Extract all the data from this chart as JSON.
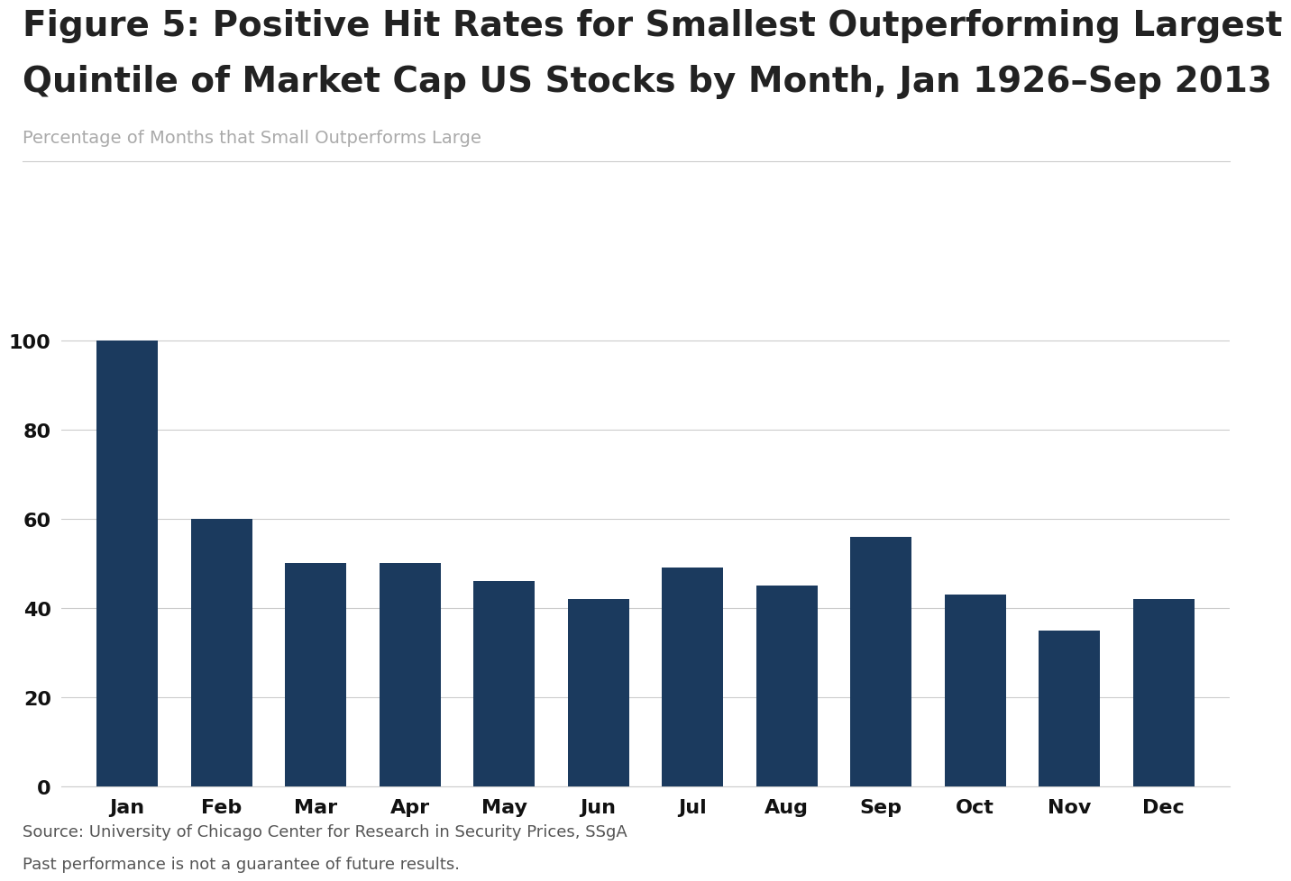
{
  "title_line1": "Figure 5: Positive Hit Rates for Smallest Outperforming Largest",
  "title_line2": "Quintile of Market Cap US Stocks by Month, Jan 1926–Sep 2013",
  "subtitle": "Percentage of Months that Small Outperforms Large",
  "categories": [
    "Jan",
    "Feb",
    "Mar",
    "Apr",
    "May",
    "Jun",
    "Jul",
    "Aug",
    "Sep",
    "Oct",
    "Nov",
    "Dec"
  ],
  "values": [
    100,
    60,
    50,
    50,
    46,
    42,
    49,
    45,
    56,
    43,
    35,
    42
  ],
  "bar_color": "#1b3a5e",
  "background_color": "#ffffff",
  "yticks": [
    0,
    20,
    40,
    60,
    80,
    100
  ],
  "ylim": [
    0,
    108
  ],
  "source_line1": "Source: University of Chicago Center for Research in Security Prices, SSgA",
  "source_line2": "Past performance is not a guarantee of future results.",
  "title_fontsize": 28,
  "subtitle_fontsize": 14,
  "tick_fontsize": 16,
  "xtick_fontsize": 16,
  "source_fontsize": 13,
  "title_color": "#222222",
  "subtitle_color": "#aaaaaa",
  "tick_color": "#111111",
  "source_color": "#555555",
  "grid_color": "#cccccc",
  "bar_width": 0.65
}
